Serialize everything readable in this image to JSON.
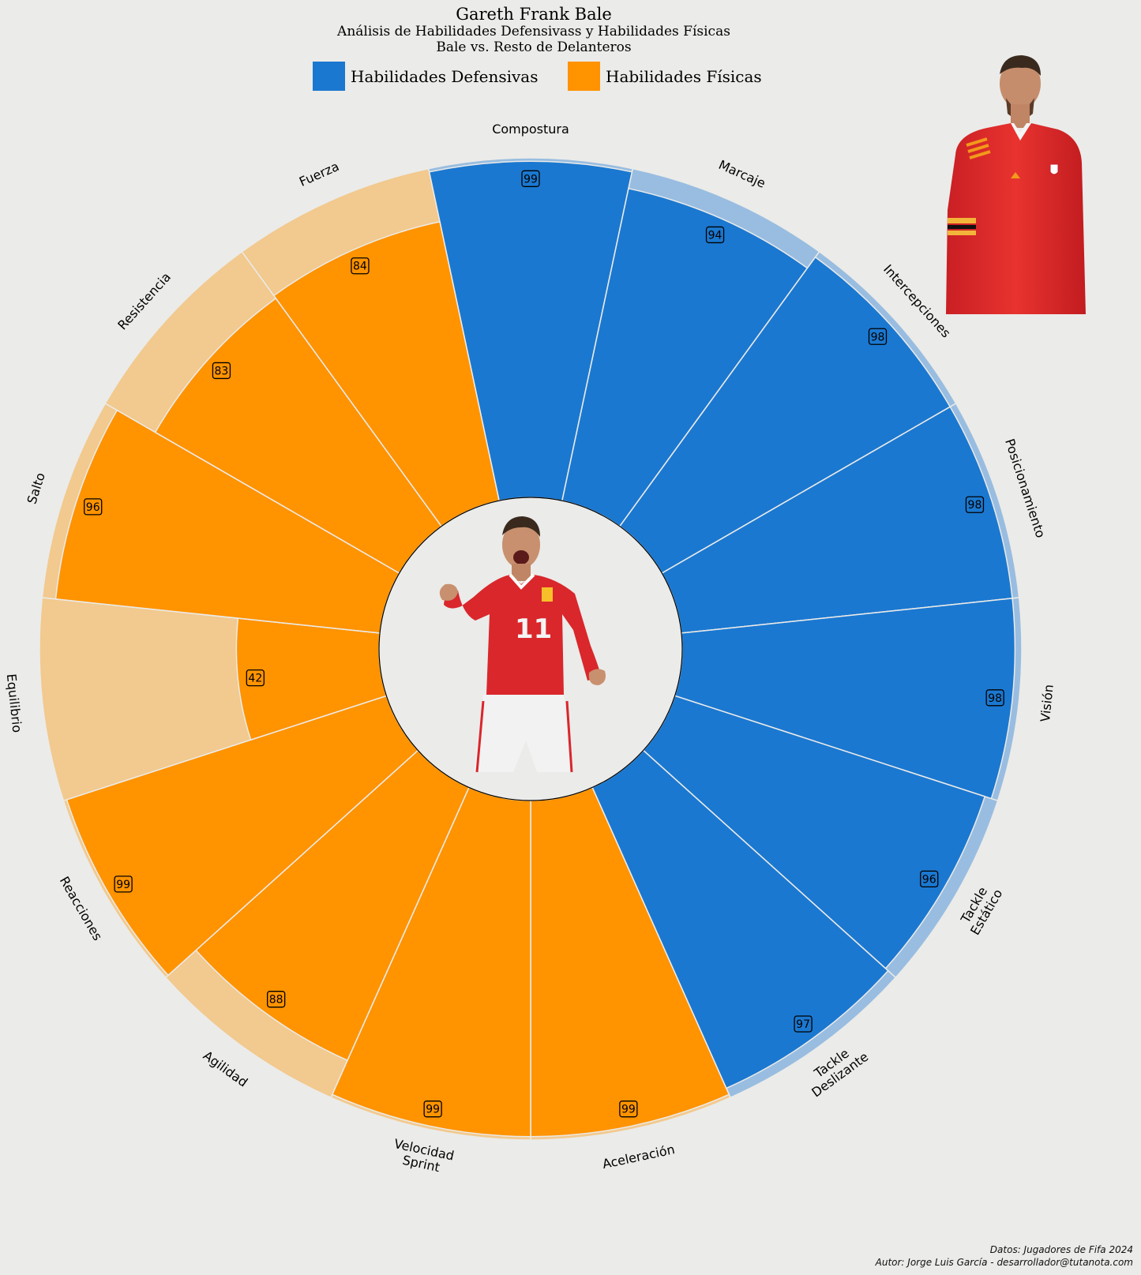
{
  "header": {
    "title": "Gareth Frank Bale",
    "subtitle": "Análisis de Habilidades Defensivass y Habilidades Físicas",
    "subtitle2": "Bale vs. Resto de Delanteros"
  },
  "legend": [
    {
      "label": "Habilidades Defensivas",
      "color": "#1b78d0"
    },
    {
      "label": "Habilidades Físicas",
      "color": "#ff9300"
    }
  ],
  "credits": {
    "line1": "Datos: Jugadores de Fifa 2024",
    "line2": "Autor: Jorge Luis García - desarrollador@tutanota.com"
  },
  "images": {
    "player_portrait": "player-portrait-red-jersey",
    "player_center": "player-celebrating-number-11"
  },
  "chart_data": {
    "type": "polar-bar",
    "title": "Gareth Frank Bale",
    "range": [
      0,
      100
    ],
    "colors": {
      "defensive": "#1b78d0",
      "defensive_ref": "#99bde0",
      "physical": "#ff9300",
      "physical_ref": "#f2c98e"
    },
    "categories": [
      {
        "label": "Compostura",
        "group": "defensive",
        "value": 99,
        "reference": 100
      },
      {
        "label": "Marcaje",
        "group": "defensive",
        "value": 94,
        "reference": 100
      },
      {
        "label": "Intercepciones",
        "group": "defensive",
        "value": 98,
        "reference": 100
      },
      {
        "label": "Posicionamiento",
        "group": "defensive",
        "value": 98,
        "reference": 100
      },
      {
        "label": "Visión",
        "group": "defensive",
        "value": 98,
        "reference": 100
      },
      {
        "label": "Tackle\nEstático",
        "group": "defensive",
        "value": 96,
        "reference": 100
      },
      {
        "label": "Tackle\nDeslizante",
        "group": "defensive",
        "value": 97,
        "reference": 100
      },
      {
        "label": "Aceleración",
        "group": "physical",
        "value": 99,
        "reference": 100
      },
      {
        "label": "Velocidad\nSprint",
        "group": "physical",
        "value": 99,
        "reference": 100
      },
      {
        "label": "Agilidad",
        "group": "physical",
        "value": 88,
        "reference": 100
      },
      {
        "label": "Reacciones",
        "group": "physical",
        "value": 99,
        "reference": 100
      },
      {
        "label": "Equilibrio",
        "group": "physical",
        "value": 42,
        "reference": 100
      },
      {
        "label": "Salto",
        "group": "physical",
        "value": 96,
        "reference": 100
      },
      {
        "label": "Resistencia",
        "group": "physical",
        "value": 83,
        "reference": 100
      },
      {
        "label": "Fuerza",
        "group": "physical",
        "value": 84,
        "reference": 100
      }
    ]
  }
}
